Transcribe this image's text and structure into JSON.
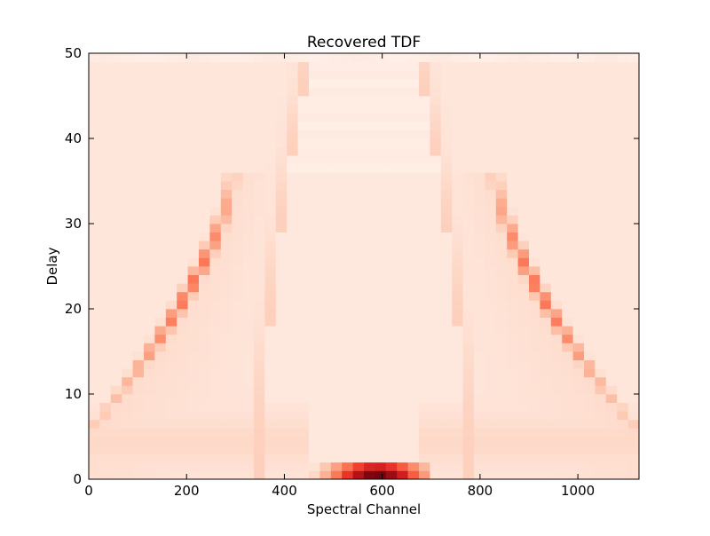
{
  "chart_data": {
    "type": "heatmap",
    "title": "Recovered TDF",
    "xlabel": "Spectral Channel",
    "ylabel": "Delay",
    "xlim": [
      0,
      1125
    ],
    "ylim": [
      0,
      50
    ],
    "xticks": [
      0,
      200,
      400,
      600,
      800,
      1000
    ],
    "yticks": [
      0,
      10,
      20,
      30,
      40,
      50
    ],
    "colormap": "Reds",
    "grid": false,
    "cell_size": {
      "x": 22.5,
      "y": 1
    },
    "structure": {
      "central_lens": {
        "center_x": 562,
        "half_width_at_delay_1": 210,
        "half_width_at_delay_49": 112,
        "top_delay": 49
      },
      "outer_ridges": {
        "peak_half_width_at_delay_35": 268,
        "half_width_at_delay_7": 540,
        "peak_intensity_near_delay": 27
      },
      "bottom_hotspot": {
        "x_range": [
          450,
          680
        ],
        "delay_range": [
          0,
          2
        ],
        "peak_x": 590
      }
    }
  }
}
